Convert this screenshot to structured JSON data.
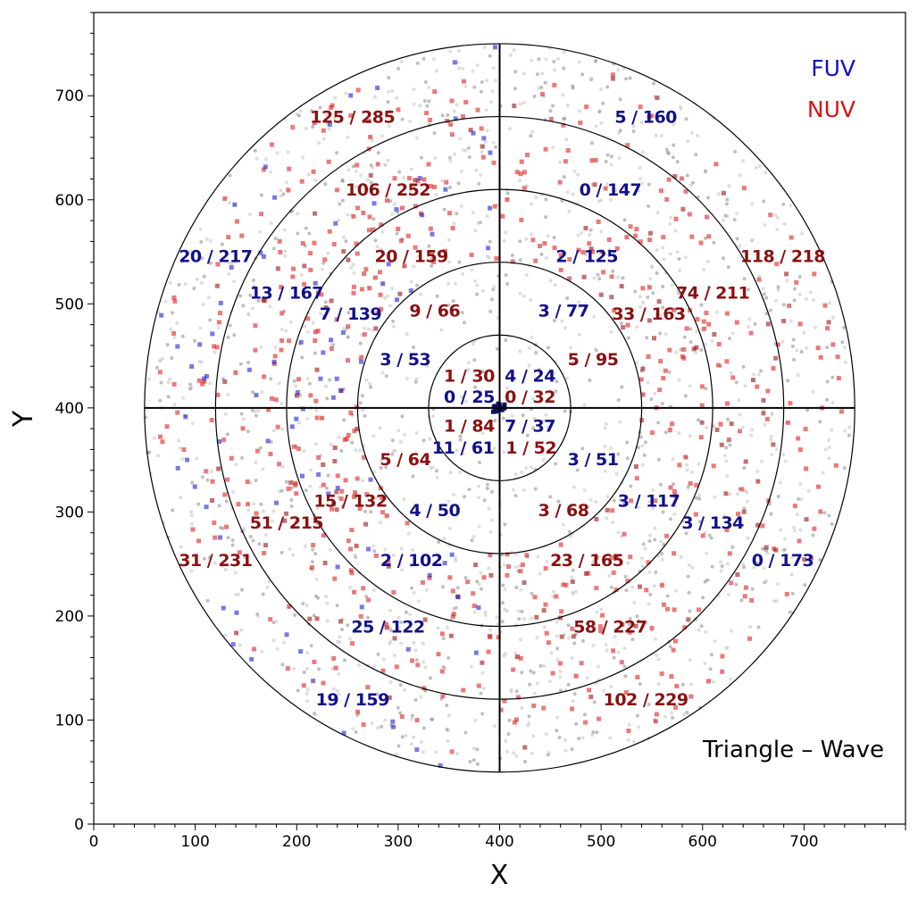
{
  "chart_data": {
    "type": "scatter",
    "title": "",
    "xlabel": "X",
    "ylabel": "Y",
    "xlim": [
      0,
      800
    ],
    "ylim": [
      0,
      780
    ],
    "xticks": [
      0,
      100,
      200,
      300,
      400,
      500,
      600,
      700
    ],
    "yticks": [
      0,
      100,
      200,
      300,
      400,
      500,
      600,
      700
    ],
    "center": [
      400,
      400
    ],
    "ring_radii": [
      70,
      140,
      210,
      280,
      350
    ],
    "annotation": "Triangle – Wave",
    "legend": {
      "position": "top-right",
      "entries": [
        {
          "label": "FUV",
          "color": "#1010c0"
        },
        {
          "label": "NUV",
          "color": "#dd1111"
        }
      ]
    },
    "colors": {
      "fuv_text": "#10108a",
      "nuv_text": "#8b1010",
      "background_points": "#888888"
    },
    "counts": [
      {
        "text": "1 / 30",
        "x": 370,
        "y": 431,
        "band": "NUV"
      },
      {
        "text": "4 / 24",
        "x": 430,
        "y": 431,
        "band": "FUV"
      },
      {
        "text": "0 / 25",
        "x": 370,
        "y": 411,
        "band": "FUV"
      },
      {
        "text": "0 / 32",
        "x": 430,
        "y": 411,
        "band": "NUV"
      },
      {
        "text": "1 / 84",
        "x": 370,
        "y": 383,
        "band": "NUV"
      },
      {
        "text": "7 / 37",
        "x": 430,
        "y": 383,
        "band": "FUV"
      },
      {
        "text": "11 / 61",
        "x": 364,
        "y": 362,
        "band": "FUV"
      },
      {
        "text": "1 / 52",
        "x": 431,
        "y": 362,
        "band": "NUV"
      },
      {
        "text": "9 / 66",
        "x": 336,
        "y": 494,
        "band": "NUV"
      },
      {
        "text": "3 / 77",
        "x": 463,
        "y": 494,
        "band": "FUV"
      },
      {
        "text": "3 / 53",
        "x": 307,
        "y": 447,
        "band": "FUV"
      },
      {
        "text": "5 / 95",
        "x": 492,
        "y": 447,
        "band": "NUV"
      },
      {
        "text": "5 / 64",
        "x": 307,
        "y": 351,
        "band": "NUV"
      },
      {
        "text": "3 / 51",
        "x": 492,
        "y": 351,
        "band": "FUV"
      },
      {
        "text": "4 / 50",
        "x": 336,
        "y": 302,
        "band": "FUV"
      },
      {
        "text": "3 / 68",
        "x": 463,
        "y": 302,
        "band": "NUV"
      },
      {
        "text": "20 / 159",
        "x": 313,
        "y": 546,
        "band": "NUV"
      },
      {
        "text": "2 / 125",
        "x": 486,
        "y": 546,
        "band": "FUV"
      },
      {
        "text": "7 / 139",
        "x": 253,
        "y": 491,
        "band": "FUV"
      },
      {
        "text": "33 / 163",
        "x": 547,
        "y": 491,
        "band": "NUV"
      },
      {
        "text": "15 / 132",
        "x": 253,
        "y": 311,
        "band": "NUV"
      },
      {
        "text": "3 / 117",
        "x": 547,
        "y": 311,
        "band": "FUV"
      },
      {
        "text": "2 / 102",
        "x": 313,
        "y": 254,
        "band": "FUV"
      },
      {
        "text": "23 / 165",
        "x": 486,
        "y": 254,
        "band": "NUV"
      },
      {
        "text": "106 / 252",
        "x": 290,
        "y": 610,
        "band": "NUV"
      },
      {
        "text": "0 / 147",
        "x": 509,
        "y": 610,
        "band": "FUV"
      },
      {
        "text": "13 / 167",
        "x": 190,
        "y": 511,
        "band": "FUV"
      },
      {
        "text": "74 / 211",
        "x": 610,
        "y": 511,
        "band": "NUV"
      },
      {
        "text": "51 / 215",
        "x": 190,
        "y": 290,
        "band": "NUV"
      },
      {
        "text": "3 / 134",
        "x": 610,
        "y": 290,
        "band": "FUV"
      },
      {
        "text": "25 / 122",
        "x": 290,
        "y": 190,
        "band": "FUV"
      },
      {
        "text": "58 / 227",
        "x": 509,
        "y": 190,
        "band": "NUV"
      },
      {
        "text": "125 / 285",
        "x": 255,
        "y": 680,
        "band": "NUV"
      },
      {
        "text": "5 / 160",
        "x": 544,
        "y": 680,
        "band": "FUV"
      },
      {
        "text": "20 / 217",
        "x": 120,
        "y": 546,
        "band": "FUV"
      },
      {
        "text": "118 / 218",
        "x": 679,
        "y": 546,
        "band": "NUV"
      },
      {
        "text": "31 / 231",
        "x": 120,
        "y": 254,
        "band": "NUV"
      },
      {
        "text": "0 / 173",
        "x": 679,
        "y": 254,
        "band": "FUV"
      },
      {
        "text": "19 / 159",
        "x": 255,
        "y": 120,
        "band": "FUV"
      },
      {
        "text": "102 / 229",
        "x": 544,
        "y": 120,
        "band": "NUV"
      }
    ]
  }
}
